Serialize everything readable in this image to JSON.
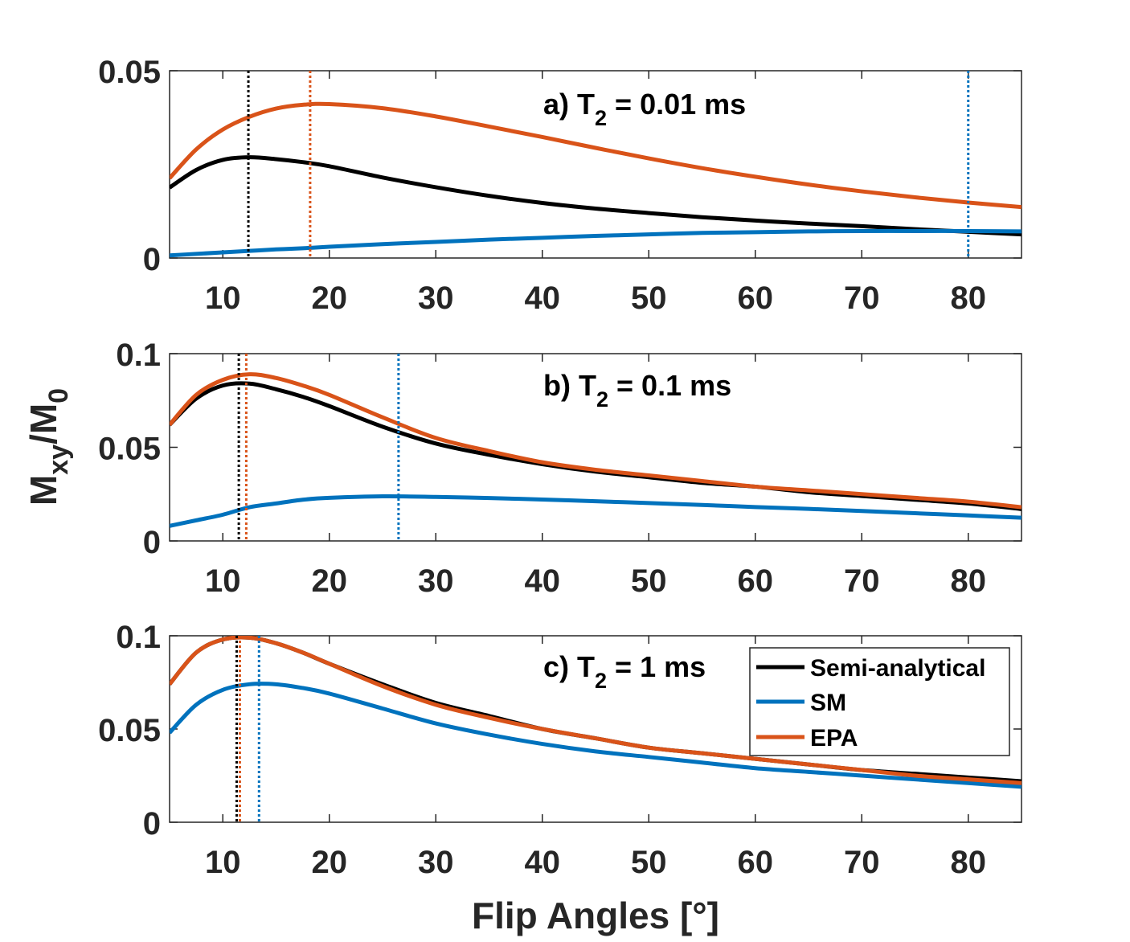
{
  "chart_data": {
    "type": "line",
    "xlabel": "Flip Angles [°]",
    "ylabel": {
      "main": "M",
      "sub1": "xy",
      "slash": "/M",
      "sub2": "0"
    },
    "xlim": [
      5,
      85
    ],
    "xticks": [
      10,
      20,
      30,
      40,
      50,
      60,
      70,
      80
    ],
    "colors": {
      "Semi-analytical": "#000000",
      "SM": "#0072BD",
      "EPA": "#D95319"
    },
    "legend": {
      "placement": "top-right of panel c",
      "entries": [
        "Semi-analytical",
        "SM",
        "EPA"
      ]
    },
    "panels": [
      {
        "id": "a",
        "title": {
          "prefix": "a) T",
          "sub": "2",
          "suffix": " = 0.01 ms"
        },
        "ylim": [
          0,
          0.05
        ],
        "yticks": [
          0,
          0.05
        ],
        "ytick_labels": [
          "0",
          "0.05"
        ],
        "x": [
          5,
          7.5,
          10,
          12.5,
          15,
          17.5,
          20,
          25,
          30,
          35,
          40,
          45,
          50,
          55,
          60,
          65,
          70,
          75,
          80,
          85
        ],
        "series": [
          {
            "name": "Semi-analytical",
            "values": [
              0.0188,
              0.0235,
              0.0262,
              0.0269,
              0.0264,
              0.0256,
              0.0245,
              0.0215,
              0.0189,
              0.0166,
              0.0147,
              0.0132,
              0.012,
              0.0109,
              0.01,
              0.0092,
              0.0085,
              0.0077,
              0.007,
              0.0063
            ]
          },
          {
            "name": "SM",
            "values": [
              0.0007,
              0.0011,
              0.0015,
              0.0019,
              0.0023,
              0.0026,
              0.003,
              0.0037,
              0.0043,
              0.0049,
              0.0054,
              0.0059,
              0.0063,
              0.0067,
              0.0069,
              0.0071,
              0.0072,
              0.0072,
              0.0072,
              0.0071
            ]
          },
          {
            "name": "EPA",
            "values": [
              0.0213,
              0.029,
              0.0343,
              0.0377,
              0.0399,
              0.0409,
              0.0411,
              0.04,
              0.0378,
              0.0351,
              0.0323,
              0.0294,
              0.0266,
              0.024,
              0.0217,
              0.0196,
              0.0178,
              0.0162,
              0.0148,
              0.0136
            ]
          }
        ],
        "peak_markers": [
          {
            "series": "Semi-analytical",
            "x": 12.4
          },
          {
            "series": "EPA",
            "x": 18.2
          },
          {
            "series": "SM",
            "x": 80
          }
        ]
      },
      {
        "id": "b",
        "title": {
          "prefix": "b) T",
          "sub": "2",
          "suffix": " = 0.1 ms"
        },
        "ylim": [
          0,
          0.1
        ],
        "yticks": [
          0,
          0.05,
          0.1
        ],
        "ytick_labels": [
          "0",
          "0.05",
          "0.1"
        ],
        "x": [
          5,
          7.5,
          10,
          12.5,
          15,
          17.5,
          20,
          25,
          30,
          35,
          40,
          45,
          50,
          55,
          60,
          65,
          70,
          75,
          80,
          85
        ],
        "series": [
          {
            "name": "Semi-analytical",
            "values": [
              0.062,
              0.076,
              0.083,
              0.084,
              0.081,
              0.077,
              0.072,
              0.061,
              0.052,
              0.046,
              0.041,
              0.037,
              0.034,
              0.031,
              0.029,
              0.026,
              0.024,
              0.022,
              0.02,
              0.017
            ]
          },
          {
            "name": "SM",
            "values": [
              0.008,
              0.011,
              0.014,
              0.018,
              0.02,
              0.022,
              0.023,
              0.0238,
              0.0235,
              0.0229,
              0.0221,
              0.0212,
              0.0202,
              0.0192,
              0.0181,
              0.0171,
              0.016,
              0.0148,
              0.0136,
              0.0124
            ]
          },
          {
            "name": "EPA",
            "values": [
              0.062,
              0.078,
              0.086,
              0.089,
              0.087,
              0.083,
              0.078,
              0.066,
              0.055,
              0.048,
              0.042,
              0.038,
              0.035,
              0.032,
              0.029,
              0.027,
              0.025,
              0.023,
              0.021,
              0.018
            ]
          }
        ],
        "peak_markers": [
          {
            "series": "Semi-analytical",
            "x": 11.5
          },
          {
            "series": "EPA",
            "x": 12.2
          },
          {
            "series": "SM",
            "x": 26.5
          }
        ]
      },
      {
        "id": "c",
        "title": {
          "prefix": "c) T",
          "sub": "2",
          "suffix": " = 1 ms"
        },
        "ylim": [
          0,
          0.1
        ],
        "yticks": [
          0,
          0.05,
          0.1
        ],
        "ytick_labels": [
          "0",
          "0.05",
          "0.1"
        ],
        "x": [
          5,
          7.5,
          10,
          12.5,
          15,
          17.5,
          20,
          25,
          30,
          35,
          40,
          45,
          50,
          55,
          60,
          65,
          70,
          75,
          80,
          85
        ],
        "series": [
          {
            "name": "Semi-analytical",
            "values": [
              0.074,
              0.091,
              0.098,
              0.099,
              0.096,
              0.091,
              0.085,
              0.074,
              0.064,
              0.057,
              0.05,
              0.045,
              0.04,
              0.037,
              0.034,
              0.031,
              0.028,
              0.026,
              0.024,
              0.022
            ]
          },
          {
            "name": "SM",
            "values": [
              0.048,
              0.063,
              0.071,
              0.074,
              0.074,
              0.072,
              0.069,
              0.061,
              0.053,
              0.047,
              0.042,
              0.038,
              0.035,
              0.032,
              0.029,
              0.027,
              0.025,
              0.023,
              0.021,
              0.019
            ]
          },
          {
            "name": "EPA",
            "values": [
              0.074,
              0.091,
              0.098,
              0.099,
              0.096,
              0.091,
              0.085,
              0.073,
              0.063,
              0.056,
              0.05,
              0.045,
              0.04,
              0.037,
              0.034,
              0.031,
              0.028,
              0.025,
              0.023,
              0.021
            ]
          }
        ],
        "peak_markers": [
          {
            "series": "Semi-analytical",
            "x": 11.3
          },
          {
            "series": "EPA",
            "x": 11.6
          },
          {
            "series": "SM",
            "x": 13.4
          }
        ]
      }
    ]
  }
}
